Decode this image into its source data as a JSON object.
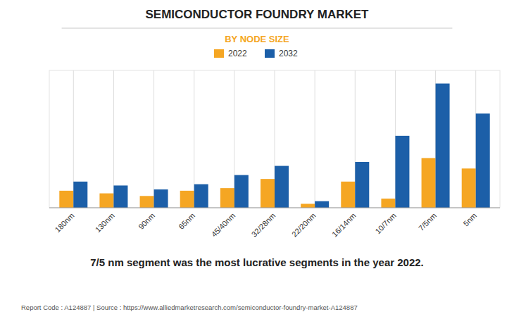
{
  "chart_data": {
    "type": "bar",
    "title": "SEMICONDUCTOR FOUNDRY MARKET",
    "subtitle": "BY NODE SIZE",
    "categories": [
      "180nm",
      "130nm",
      "90nm",
      "65nm",
      "45/40nm",
      "32/28nm",
      "22/20nm",
      "16/14nm",
      "10/7nm",
      "7/5nm",
      "5nm"
    ],
    "series": [
      {
        "name": "2022",
        "color": "#F5A623",
        "values": [
          13,
          11,
          9,
          13,
          15,
          22,
          3,
          20,
          7,
          38,
          30
        ]
      },
      {
        "name": "2032",
        "color": "#1C5FA8",
        "values": [
          20,
          17,
          14,
          18,
          25,
          32,
          5,
          35,
          55,
          95,
          72
        ]
      }
    ],
    "ylim": [
      0,
      105
    ],
    "grid": true,
    "tick_labels": "x",
    "legend": "top",
    "annotations": [
      "7/5 nm segment was the most lucrative segments in the year 2022.",
      "Report Code : A124887  |  Source : https://www.alliedmarketresearch.com/semiconductor-foundry-market-A124887"
    ]
  }
}
